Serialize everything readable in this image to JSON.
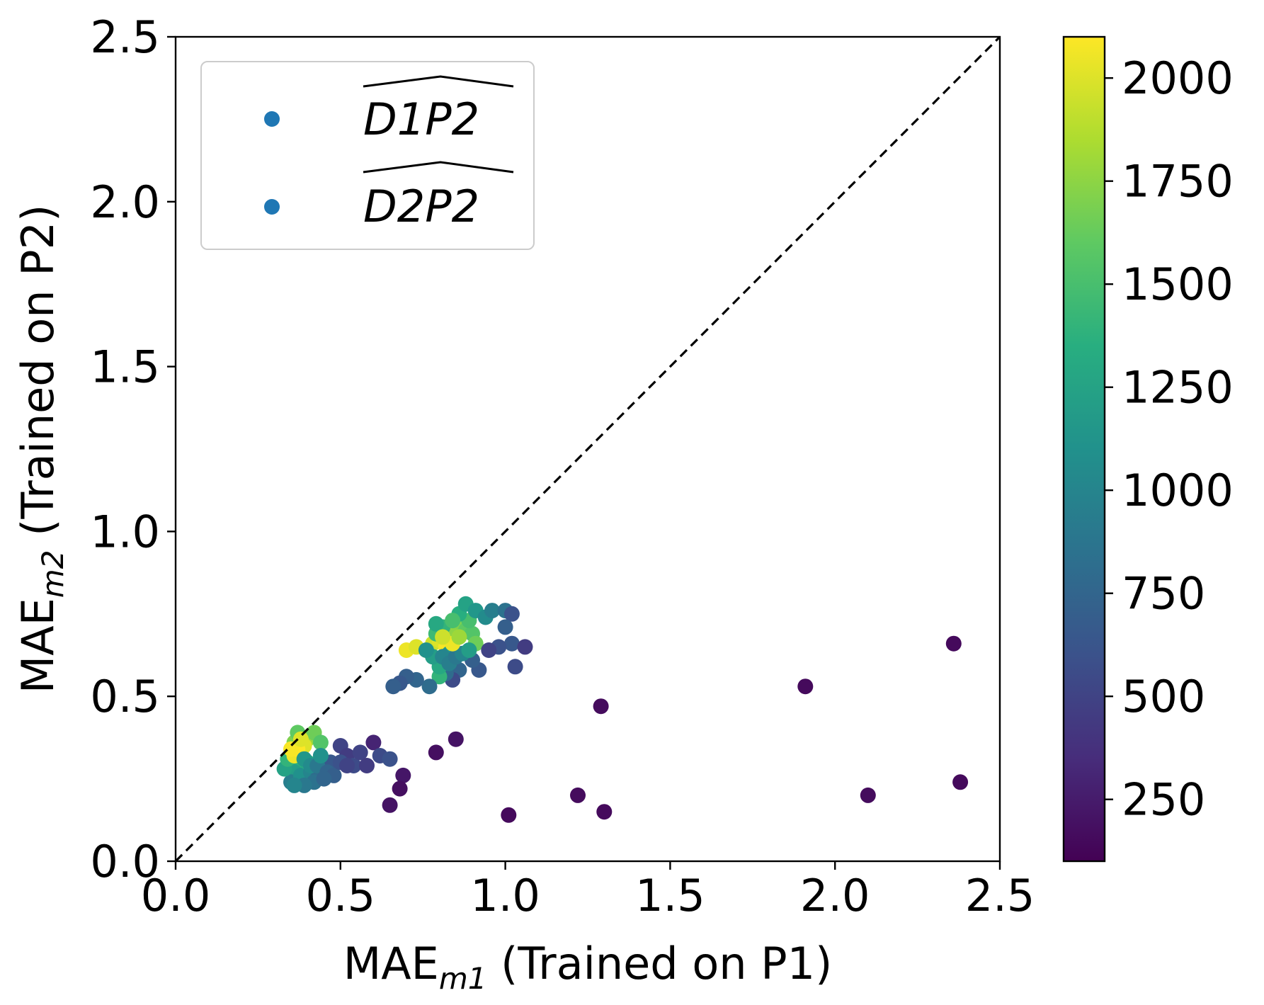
{
  "chart_data": {
    "type": "scatter",
    "title": "",
    "xlabel": {
      "main": "MAE",
      "sub": "m1",
      "rest": " (Trained on P1)"
    },
    "ylabel": {
      "main": "MAE",
      "sub": "m2",
      "rest": "  (Trained on P2)"
    },
    "xlim": [
      0.0,
      2.5
    ],
    "ylim": [
      0.0,
      2.5
    ],
    "xticks": [
      "0.0",
      "0.5",
      "1.0",
      "1.5",
      "2.0",
      "2.5"
    ],
    "yticks": [
      "0.0",
      "0.5",
      "1.0",
      "1.5",
      "2.0",
      "2.5"
    ],
    "grid": false,
    "reference_line": "y = x (dashed)",
    "legend": {
      "placement": "top-left",
      "entries": [
        {
          "label": "D1P2",
          "marker_color": "#1f77b4"
        },
        {
          "label": "D2P2",
          "marker_color": "#1f77b4"
        }
      ]
    },
    "colorbar": {
      "colormap": "viridis",
      "range": [
        100,
        2100
      ],
      "ticks": [
        "250",
        "500",
        "750",
        "1000",
        "1250",
        "1500",
        "1750",
        "2000"
      ]
    },
    "series": [
      {
        "name": "D1P2",
        "points": [
          [
            0.35,
            0.29,
            1450
          ],
          [
            0.37,
            0.33,
            1500
          ],
          [
            0.38,
            0.3,
            1350
          ],
          [
            0.36,
            0.27,
            1200
          ],
          [
            0.35,
            0.24,
            950
          ],
          [
            0.38,
            0.26,
            1100
          ],
          [
            0.4,
            0.3,
            1300
          ],
          [
            0.41,
            0.27,
            1000
          ],
          [
            0.43,
            0.25,
            800
          ],
          [
            0.45,
            0.28,
            700
          ],
          [
            0.47,
            0.3,
            650
          ],
          [
            0.5,
            0.35,
            500
          ],
          [
            0.52,
            0.32,
            450
          ],
          [
            0.54,
            0.29,
            550
          ],
          [
            0.56,
            0.33,
            500
          ],
          [
            0.58,
            0.29,
            450
          ],
          [
            0.6,
            0.36,
            300
          ],
          [
            0.62,
            0.32,
            550
          ],
          [
            0.65,
            0.31,
            600
          ],
          [
            0.33,
            0.28,
            1250
          ],
          [
            0.34,
            0.31,
            1400
          ],
          [
            0.36,
            0.36,
            1700
          ],
          [
            0.37,
            0.39,
            1600
          ],
          [
            0.4,
            0.37,
            1800
          ],
          [
            0.42,
            0.39,
            1650
          ],
          [
            0.44,
            0.36,
            1550
          ],
          [
            0.38,
            0.33,
            1900
          ],
          [
            0.39,
            0.35,
            2000
          ],
          [
            0.36,
            0.32,
            2050
          ],
          [
            0.37,
            0.34,
            2100
          ],
          [
            0.35,
            0.34,
            2080
          ],
          [
            0.38,
            0.37,
            2000
          ],
          [
            0.39,
            0.31,
            1150
          ],
          [
            0.41,
            0.29,
            1050
          ],
          [
            0.43,
            0.29,
            900
          ],
          [
            0.46,
            0.27,
            750
          ],
          [
            0.48,
            0.26,
            700
          ],
          [
            0.5,
            0.3,
            600
          ],
          [
            0.42,
            0.24,
            850
          ],
          [
            0.39,
            0.23,
            900
          ],
          [
            0.44,
            0.32,
            1100
          ],
          [
            0.36,
            0.23,
            1000
          ],
          [
            0.45,
            0.25,
            750
          ],
          [
            0.52,
            0.29,
            500
          ]
        ]
      },
      {
        "name": "D2P2",
        "points": [
          [
            0.7,
            0.64,
            2050
          ],
          [
            0.73,
            0.65,
            2000
          ],
          [
            0.76,
            0.64,
            2100
          ],
          [
            0.78,
            0.66,
            1950
          ],
          [
            0.8,
            0.67,
            2000
          ],
          [
            0.82,
            0.65,
            2080
          ],
          [
            0.84,
            0.68,
            1900
          ],
          [
            0.85,
            0.7,
            1750
          ],
          [
            0.87,
            0.72,
            1700
          ],
          [
            0.88,
            0.7,
            1600
          ],
          [
            0.9,
            0.69,
            1550
          ],
          [
            0.91,
            0.66,
            1650
          ],
          [
            0.89,
            0.73,
            1500
          ],
          [
            0.86,
            0.75,
            1350
          ],
          [
            0.88,
            0.78,
            1250
          ],
          [
            0.91,
            0.76,
            1150
          ],
          [
            0.94,
            0.74,
            1050
          ],
          [
            0.96,
            0.76,
            950
          ],
          [
            1.0,
            0.76,
            850
          ],
          [
            1.02,
            0.75,
            600
          ],
          [
            1.0,
            0.71,
            700
          ],
          [
            1.02,
            0.66,
            650
          ],
          [
            1.06,
            0.65,
            450
          ],
          [
            1.03,
            0.59,
            550
          ],
          [
            0.98,
            0.65,
            600
          ],
          [
            0.95,
            0.64,
            500
          ],
          [
            0.92,
            0.58,
            650
          ],
          [
            0.9,
            0.61,
            700
          ],
          [
            0.86,
            0.58,
            750
          ],
          [
            0.84,
            0.55,
            550
          ],
          [
            0.82,
            0.57,
            800
          ],
          [
            0.8,
            0.56,
            1400
          ],
          [
            0.8,
            0.59,
            1300
          ],
          [
            0.78,
            0.62,
            1200
          ],
          [
            0.76,
            0.64,
            1100
          ],
          [
            0.79,
            0.69,
            1450
          ],
          [
            0.81,
            0.71,
            1400
          ],
          [
            0.79,
            0.72,
            1300
          ],
          [
            0.84,
            0.73,
            1500
          ],
          [
            0.83,
            0.63,
            1150
          ],
          [
            0.81,
            0.62,
            1000
          ],
          [
            0.77,
            0.53,
            800
          ],
          [
            0.73,
            0.55,
            750
          ],
          [
            0.7,
            0.56,
            700
          ],
          [
            0.68,
            0.54,
            650
          ],
          [
            0.66,
            0.53,
            700
          ],
          [
            0.83,
            0.6,
            950
          ],
          [
            0.85,
            0.62,
            900
          ],
          [
            0.87,
            0.63,
            1000
          ],
          [
            0.89,
            0.64,
            1200
          ],
          [
            0.84,
            0.66,
            2050
          ],
          [
            0.81,
            0.68,
            1950
          ],
          [
            0.86,
            0.68,
            1800
          ]
        ]
      },
      {
        "name": "",
        "points": [
          [
            2.36,
            0.66,
            150
          ],
          [
            1.91,
            0.53,
            150
          ],
          [
            1.29,
            0.47,
            160
          ],
          [
            0.85,
            0.37,
            200
          ],
          [
            0.79,
            0.33,
            180
          ],
          [
            0.69,
            0.26,
            220
          ],
          [
            0.68,
            0.22,
            180
          ],
          [
            0.65,
            0.17,
            200
          ],
          [
            1.01,
            0.14,
            150
          ],
          [
            1.22,
            0.2,
            160
          ],
          [
            1.3,
            0.15,
            150
          ],
          [
            2.1,
            0.2,
            160
          ],
          [
            2.38,
            0.24,
            150
          ]
        ]
      }
    ]
  }
}
